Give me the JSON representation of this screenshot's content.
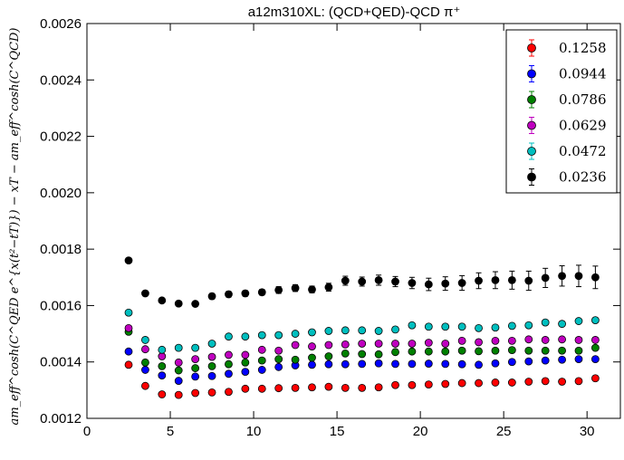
{
  "chart_data": {
    "type": "scatter",
    "title": "a12m310XL: (QCD+QED)-QCD π⁺",
    "xlabel": "",
    "ylabel": "am_eff^cosh(C^QED e^{x(t²−tT)}) − xT − am_eff^cosh(C^QCD)",
    "xlim": [
      0,
      32
    ],
    "ylim": [
      0.0012,
      0.0026
    ],
    "x_ticks": [
      "0",
      "5",
      "10",
      "15",
      "20",
      "25",
      "30"
    ],
    "y_ticks": [
      "0.0012",
      "0.0014",
      "0.0016",
      "0.0018",
      "0.0020",
      "0.0022",
      "0.0024",
      "0.0026"
    ],
    "grid": false,
    "legend_position": "top-right",
    "error_bars": true,
    "x": [
      2.5,
      3.5,
      4.5,
      5.5,
      6.5,
      7.5,
      8.5,
      9.5,
      10.5,
      11.5,
      12.5,
      13.5,
      14.5,
      15.5,
      16.5,
      17.5,
      18.5,
      19.5,
      20.5,
      21.5,
      22.5,
      23.5,
      24.5,
      25.5,
      26.5,
      27.5,
      28.5,
      29.5,
      30.5
    ],
    "series": [
      {
        "name": "0.1258",
        "color": "#ff0000",
        "values": [
          0.00139,
          0.001315,
          0.001285,
          0.001283,
          0.00129,
          0.001292,
          0.001294,
          0.001305,
          0.001305,
          0.001307,
          0.001308,
          0.00131,
          0.001312,
          0.001308,
          0.001308,
          0.00131,
          0.001318,
          0.001318,
          0.00132,
          0.001322,
          0.001325,
          0.001325,
          0.001327,
          0.001327,
          0.00133,
          0.001332,
          0.00133,
          0.001332,
          0.001342
        ],
        "errors": [
          5e-06,
          5e-06,
          5e-06,
          5e-06,
          5e-06,
          5e-06,
          5e-06,
          5e-06,
          5e-06,
          5e-06,
          5e-06,
          5e-06,
          5e-06,
          5e-06,
          5e-06,
          5e-06,
          5e-06,
          5e-06,
          5e-06,
          5e-06,
          5e-06,
          5e-06,
          5e-06,
          5e-06,
          5e-06,
          5e-06,
          6e-06,
          6e-06,
          6e-06
        ]
      },
      {
        "name": "0.0944",
        "color": "#0000ff",
        "values": [
          0.001437,
          0.001372,
          0.001352,
          0.001333,
          0.001348,
          0.00135,
          0.001358,
          0.001365,
          0.001372,
          0.001382,
          0.001388,
          0.00139,
          0.001392,
          0.001392,
          0.001393,
          0.001395,
          0.001393,
          0.001393,
          0.001394,
          0.001393,
          0.001392,
          0.00139,
          0.001395,
          0.0014,
          0.001402,
          0.001405,
          0.001408,
          0.00141,
          0.00141
        ],
        "errors": [
          5e-06,
          5e-06,
          5e-06,
          5e-06,
          5e-06,
          5e-06,
          5e-06,
          5e-06,
          5e-06,
          5e-06,
          5e-06,
          5e-06,
          5e-06,
          5e-06,
          5e-06,
          5e-06,
          5e-06,
          5e-06,
          5e-06,
          5e-06,
          5e-06,
          5e-06,
          5e-06,
          5e-06,
          5e-06,
          5e-06,
          5e-06,
          6e-06,
          6e-06
        ]
      },
      {
        "name": "0.0786",
        "color": "#008000",
        "values": [
          0.001507,
          0.001398,
          0.001385,
          0.00137,
          0.001378,
          0.001385,
          0.001392,
          0.001398,
          0.001405,
          0.00141,
          0.001408,
          0.001415,
          0.00142,
          0.00143,
          0.001428,
          0.001427,
          0.001435,
          0.001437,
          0.001437,
          0.001437,
          0.00144,
          0.001438,
          0.00144,
          0.001442,
          0.00144,
          0.00144,
          0.00144,
          0.00144,
          0.00145
        ],
        "errors": [
          5e-06,
          5e-06,
          5e-06,
          5e-06,
          5e-06,
          5e-06,
          5e-06,
          5e-06,
          5e-06,
          5e-06,
          5e-06,
          5e-06,
          5e-06,
          5e-06,
          5e-06,
          5e-06,
          5e-06,
          5e-06,
          5e-06,
          5e-06,
          5e-06,
          5e-06,
          5e-06,
          5e-06,
          5e-06,
          5e-06,
          6e-06,
          6e-06,
          7e-06
        ]
      },
      {
        "name": "0.0629",
        "color": "#bf00bf",
        "values": [
          0.00152,
          0.001445,
          0.00142,
          0.001398,
          0.00141,
          0.001418,
          0.001425,
          0.001425,
          0.001443,
          0.00144,
          0.00146,
          0.001455,
          0.00146,
          0.001462,
          0.001465,
          0.001465,
          0.001465,
          0.001465,
          0.001468,
          0.001465,
          0.001475,
          0.00147,
          0.001475,
          0.001475,
          0.00148,
          0.001478,
          0.00148,
          0.001478,
          0.001478
        ],
        "errors": [
          5e-06,
          5e-06,
          5e-06,
          5e-06,
          5e-06,
          5e-06,
          5e-06,
          5e-06,
          5e-06,
          5e-06,
          5e-06,
          5e-06,
          5e-06,
          5e-06,
          5e-06,
          5e-06,
          5e-06,
          5e-06,
          5e-06,
          5e-06,
          5e-06,
          5e-06,
          5e-06,
          5e-06,
          5e-06,
          5e-06,
          6e-06,
          6e-06,
          6e-06
        ]
      },
      {
        "name": "0.0472",
        "color": "#00bfbf",
        "values": [
          0.001575,
          0.001478,
          0.001443,
          0.00145,
          0.00145,
          0.001465,
          0.00149,
          0.00149,
          0.001495,
          0.001495,
          0.0015,
          0.001505,
          0.00151,
          0.001512,
          0.001512,
          0.00151,
          0.001515,
          0.00153,
          0.001525,
          0.001525,
          0.001525,
          0.00152,
          0.001522,
          0.001528,
          0.00153,
          0.00154,
          0.001535,
          0.001545,
          0.001548
        ],
        "errors": [
          5e-06,
          5e-06,
          5e-06,
          5e-06,
          5e-06,
          5e-06,
          5e-06,
          5e-06,
          5e-06,
          5e-06,
          5e-06,
          5e-06,
          5e-06,
          5e-06,
          5e-06,
          5e-06,
          5e-06,
          5e-06,
          5e-06,
          5e-06,
          5e-06,
          5e-06,
          5e-06,
          5e-06,
          5e-06,
          5e-06,
          6e-06,
          6e-06,
          6e-06
        ]
      },
      {
        "name": "0.0236",
        "color": "#000000",
        "values": [
          0.00176,
          0.001643,
          0.001618,
          0.001607,
          0.001606,
          0.001633,
          0.00164,
          0.001643,
          0.001647,
          0.001655,
          0.001662,
          0.001657,
          0.001665,
          0.001688,
          0.001685,
          0.00169,
          0.001685,
          0.00168,
          0.001675,
          0.001678,
          0.00168,
          0.001688,
          0.00169,
          0.00169,
          0.001688,
          0.001698,
          0.001705,
          0.001705,
          0.0017
        ],
        "errors": [
          8e-06,
          8e-06,
          8e-06,
          8e-06,
          8e-06,
          1e-05,
          1e-05,
          1e-05,
          1e-05,
          1.2e-05,
          1.2e-05,
          1.2e-05,
          1.4e-05,
          1.6e-05,
          1.6e-05,
          1.8e-05,
          1.8e-05,
          2e-05,
          2.2e-05,
          2.4e-05,
          2.6e-05,
          2.8e-05,
          3e-05,
          3.2e-05,
          3.4e-05,
          3.4e-05,
          3.6e-05,
          3.8e-05,
          4e-05
        ]
      }
    ]
  }
}
